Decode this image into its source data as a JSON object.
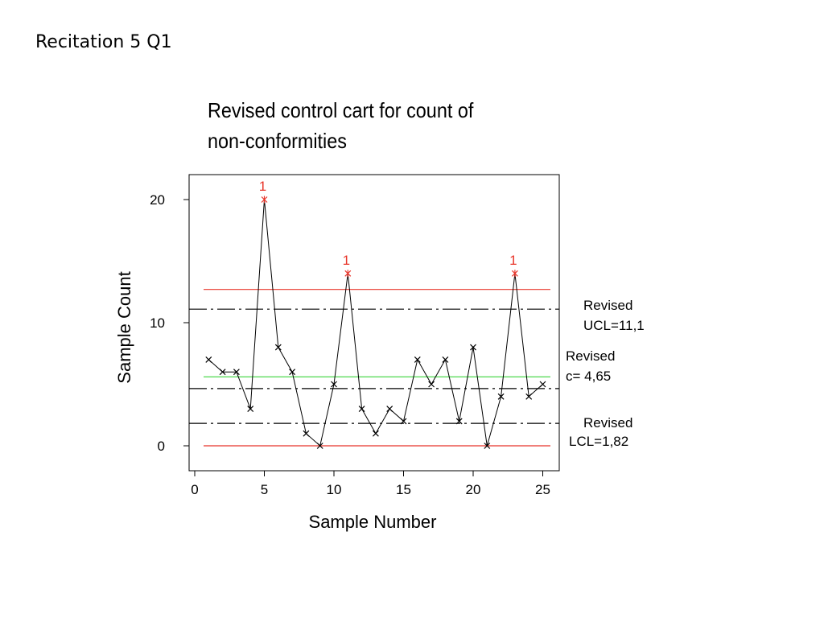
{
  "slide": {
    "title": "Recitation 5 Q1"
  },
  "chart_data": {
    "type": "line",
    "title_lines": [
      "Revised control cart for count of",
      "non-conformities"
    ],
    "xlabel": "Sample Number",
    "ylabel": "Sample Count",
    "xlim": [
      -0.5,
      26
    ],
    "ylim": [
      -2,
      22
    ],
    "xticks": [
      0,
      5,
      10,
      15,
      20,
      25
    ],
    "yticks": [
      0,
      10,
      20
    ],
    "series": [
      {
        "x": [
          1,
          2,
          3,
          4,
          5,
          6,
          7,
          8,
          9,
          10,
          11,
          12,
          13,
          14,
          15,
          16,
          17,
          18,
          19,
          20,
          21,
          22,
          23,
          24,
          25
        ],
        "values": [
          7,
          6,
          6,
          3,
          20,
          8,
          6,
          1,
          0,
          5,
          14,
          3,
          1,
          3,
          2,
          7,
          5,
          7,
          2,
          8,
          0,
          4,
          14,
          4,
          5
        ]
      }
    ],
    "out_of_control": [
      {
        "x": 5,
        "value": 20,
        "label": "1"
      },
      {
        "x": 11,
        "value": 14,
        "label": "1"
      },
      {
        "x": 23,
        "value": 14,
        "label": "1"
      }
    ],
    "limit_lines": [
      {
        "id": "ucl-red",
        "value": 12.7,
        "style": "solid",
        "color": "#e8352a"
      },
      {
        "id": "ucl-revised",
        "value": 11.1,
        "style": "dashdot",
        "color": "#000000"
      },
      {
        "id": "center-green",
        "value": 5.6,
        "style": "solid",
        "color": "#3ad43a"
      },
      {
        "id": "center-revised",
        "value": 4.65,
        "style": "dashdot",
        "color": "#000000"
      },
      {
        "id": "lcl-revised",
        "value": 1.82,
        "style": "dashdot",
        "color": "#000000"
      },
      {
        "id": "lcl-red",
        "value": 0,
        "style": "solid",
        "color": "#e8352a"
      }
    ],
    "annotations": {
      "ucl": [
        "Revised",
        "UCL=11,1"
      ],
      "center": [
        "Revised",
        "c= 4,65"
      ],
      "lcl": [
        "Revised",
        "LCL=1,82"
      ]
    },
    "colors": {
      "line": "#000000",
      "flag": "#e8352a"
    },
    "grid": false,
    "legend": "none"
  }
}
